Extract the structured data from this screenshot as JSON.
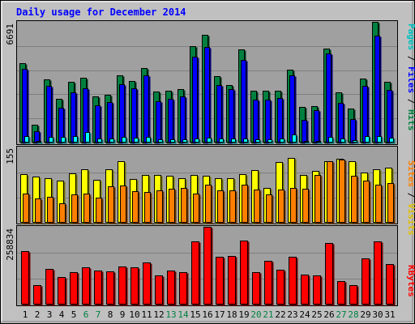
{
  "chart_data": {
    "type": "bar",
    "title": "Daily usage for December 2014",
    "days": [
      "1",
      "2",
      "3",
      "4",
      "5",
      "6",
      "7",
      "8",
      "9",
      "10",
      "11",
      "12",
      "13",
      "14",
      "15",
      "16",
      "17",
      "18",
      "19",
      "20",
      "21",
      "22",
      "23",
      "24",
      "25",
      "26",
      "27",
      "28",
      "29",
      "30",
      "31"
    ],
    "weekend_days": [
      "6",
      "7",
      "13",
      "14",
      "20",
      "21",
      "27",
      "28"
    ],
    "panels": [
      {
        "id": "hits",
        "ymax_label": "6691",
        "ymax": 6691,
        "series": [
          {
            "name": "Hits",
            "color": "#008040",
            "values": [
              4380,
              1000,
              3520,
              2420,
              3380,
              3580,
              2580,
              2660,
              3720,
              3430,
              4150,
              2810,
              2880,
              2950,
              5330,
              5990,
              3700,
              3180,
              5160,
              2870,
              2880,
              2880,
              4050,
              1960,
              2010,
              5230,
              2800,
              1900,
              3560,
              6691,
              3360
            ]
          },
          {
            "name": "Files",
            "color": "#0000ff",
            "values": [
              4090,
              630,
              3140,
              1910,
              2790,
              3030,
              2070,
              2260,
              3220,
              3000,
              3740,
              2300,
              2430,
              2560,
              4770,
              5310,
              3180,
              2970,
              4600,
              2380,
              2380,
              2460,
              3720,
              1240,
              1800,
              4920,
              2220,
              1290,
              3130,
              5920,
              2920
            ]
          },
          {
            "name": "Pages",
            "color": "#00ffff",
            "values": [
              380,
              90,
              330,
              320,
              380,
              570,
              230,
              230,
              310,
              260,
              300,
              190,
              190,
              180,
              220,
              250,
              230,
              220,
              230,
              200,
              200,
              220,
              460,
              90,
              80,
              310,
              230,
              150,
              360,
              350,
              270
            ]
          }
        ]
      },
      {
        "id": "visits",
        "ymax_label": "155",
        "ymax": 155,
        "series": [
          {
            "name": "Visits",
            "color": "#ffff00",
            "values": [
              100,
              95,
              91,
              87,
              102,
              110,
              88,
              110,
              127,
              90,
              98,
              98,
              96,
              91,
              98,
              96,
              91,
              91,
              100,
              109,
              71,
              125,
              133,
              99,
              107,
              127,
              132,
              127,
              103,
              110,
              114
            ]
          },
          {
            "name": "Sites",
            "color": "#ff8000",
            "values": [
              60,
              50,
              53,
              40,
              58,
              60,
              51,
              75,
              76,
              65,
              64,
              66,
              70,
              71,
              60,
              79,
              67,
              67,
              79,
              68,
              59,
              68,
              72,
              70,
              98,
              127,
              130,
              97,
              87,
              79,
              82
            ]
          }
        ]
      },
      {
        "id": "kbytes",
        "ymax_label": "258834",
        "ymax": 258834,
        "series": [
          {
            "name": "KBytes",
            "color": "#ff0000",
            "values": [
              178000,
              66000,
              118000,
              91000,
              109000,
              123000,
              112000,
              111000,
              127000,
              124000,
              141000,
              97000,
              114000,
              108000,
              210000,
              258834,
              158000,
              163000,
              213000,
              109000,
              145000,
              117000,
              159000,
              100000,
              98000,
              205000,
              78000,
              65000,
              154000,
              211000,
              135000
            ]
          }
        ]
      }
    ],
    "legend": {
      "hits": [
        {
          "text": "Pages",
          "color": "#00c0c0"
        },
        {
          "text": " / ",
          "color": "#000000"
        },
        {
          "text": "Files",
          "color": "#0000ff"
        },
        {
          "text": " / ",
          "color": "#000000"
        },
        {
          "text": "Hits",
          "color": "#008040"
        }
      ],
      "visits": [
        {
          "text": "Sites",
          "color": "#ff8000"
        },
        {
          "text": " / ",
          "color": "#000000"
        },
        {
          "text": "Visits",
          "color": "#e0c000"
        }
      ],
      "kbytes": [
        {
          "text": "KBytes",
          "color": "#ff0000"
        }
      ]
    },
    "colors": {
      "background": "#c0c0c0",
      "panel": "#a0a0a0",
      "gridline": "#7f7f7f",
      "title": "#0000ff",
      "day_label": "#000000",
      "weekend_label": "#008040"
    }
  }
}
